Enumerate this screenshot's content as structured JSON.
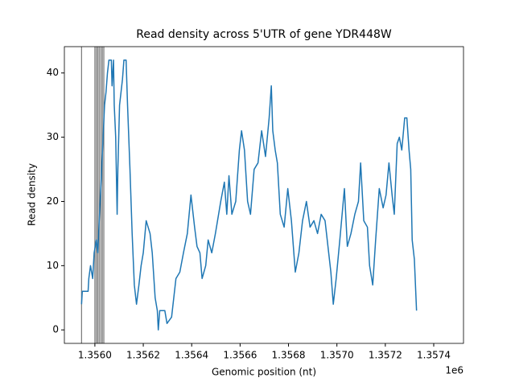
{
  "chart_data": {
    "type": "line",
    "title": "Read density across 5'UTR of gene YDR448W",
    "x_label": "Genomic position (nt)",
    "y_label": "Read density",
    "x_offset_label": "1e6",
    "x": [
      1355945,
      1355948,
      1355972,
      1355975,
      1355982,
      1355991,
      1355997,
      1356006,
      1356012,
      1356018,
      1356028,
      1356034,
      1356040,
      1356046,
      1356052,
      1356058,
      1356068,
      1356071,
      1356077,
      1356080,
      1356086,
      1356092,
      1356095,
      1356102,
      1356108,
      1356114,
      1356120,
      1356129,
      1356135,
      1356145,
      1356154,
      1356163,
      1356172,
      1356182,
      1356191,
      1356200,
      1356212,
      1356228,
      1356237,
      1356249,
      1356258,
      1356262,
      1356268,
      1356289,
      1356298,
      1356317,
      1356335,
      1356351,
      1356366,
      1356382,
      1356397,
      1356412,
      1356422,
      1356434,
      1356443,
      1356458,
      1356468,
      1356483,
      1356498,
      1356520,
      1356535,
      1356545,
      1356554,
      1356566,
      1356582,
      1356597,
      1356606,
      1356618,
      1356631,
      1356643,
      1356658,
      1356674,
      1356689,
      1356705,
      1356720,
      1356729,
      1356735,
      1356745,
      1356754,
      1356766,
      1356782,
      1356797,
      1356812,
      1356828,
      1356843,
      1356858,
      1356874,
      1356889,
      1356905,
      1356920,
      1356935,
      1356951,
      1356966,
      1356975,
      1356985,
      1356997,
      1357012,
      1357031,
      1357043,
      1357058,
      1357074,
      1357089,
      1357098,
      1357111,
      1357126,
      1357135,
      1357148,
      1357160,
      1357175,
      1357191,
      1357203,
      1357215,
      1357228,
      1357237,
      1357249,
      1357258,
      1357268,
      1357280,
      1357289,
      1357298,
      1357305,
      1357311,
      1357320,
      1357329
    ],
    "series": [
      {
        "color": "#1f77b4",
        "values": [
          4,
          6,
          6,
          8,
          10,
          8,
          12,
          14,
          12,
          17,
          25,
          30,
          35,
          37,
          40,
          42,
          42,
          38,
          42,
          35,
          30,
          18,
          25,
          35,
          37,
          39,
          42,
          42,
          35,
          25,
          15,
          7,
          4,
          7,
          10,
          12,
          17,
          15,
          12,
          5,
          3,
          0,
          3,
          3,
          1,
          2,
          8,
          9,
          12,
          15,
          21,
          16,
          13,
          12,
          8,
          10,
          14,
          12,
          15,
          20,
          23,
          18,
          24,
          18,
          20,
          28,
          31,
          28,
          20,
          18,
          25,
          26,
          31,
          27,
          33,
          38,
          31,
          28,
          26,
          18,
          16,
          22,
          17,
          9,
          12,
          17,
          20,
          16,
          17,
          15,
          18,
          17,
          12,
          9,
          4,
          8,
          14,
          22,
          13,
          15,
          18,
          20,
          26,
          17,
          16,
          10,
          7,
          14,
          22,
          19,
          21,
          26,
          21,
          18,
          29,
          30,
          28,
          33,
          33,
          28,
          25,
          14,
          11,
          3
        ]
      }
    ],
    "vlines": [
      1355945,
      1356000,
      1356006,
      1356012,
      1356018,
      1356025,
      1356031,
      1356037
    ],
    "vline_color": "#555555",
    "xlim": [
      1355874,
      1357523
    ],
    "xticks": [
      {
        "value": 1356000,
        "label": "1.3560"
      },
      {
        "value": 1356200,
        "label": "1.3562"
      },
      {
        "value": 1356400,
        "label": "1.3564"
      },
      {
        "value": 1356600,
        "label": "1.3566"
      },
      {
        "value": 1356800,
        "label": "1.3568"
      },
      {
        "value": 1357000,
        "label": "1.3570"
      },
      {
        "value": 1357200,
        "label": "1.3572"
      },
      {
        "value": 1357400,
        "label": "1.3574"
      }
    ],
    "ylim": [
      -2.1,
      44.1
    ],
    "yticks": [
      0,
      10,
      20,
      30,
      40
    ]
  }
}
